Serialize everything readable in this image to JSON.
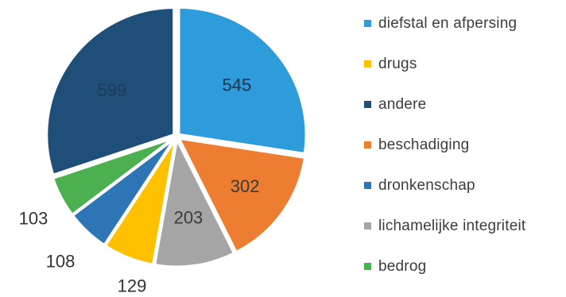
{
  "chart_data": {
    "type": "pie",
    "title": "",
    "series": [
      {
        "name": "diefstal en afpersing",
        "value": 545,
        "color": "#2E9BDB"
      },
      {
        "name": "beschadiging",
        "value": 302,
        "color": "#ED7D31"
      },
      {
        "name": "lichamelijke integriteit",
        "value": 203,
        "color": "#A5A5A5"
      },
      {
        "name": "drugs",
        "value": 129,
        "color": "#FFC000"
      },
      {
        "name": "dronkenschap",
        "value": 108,
        "color": "#2E75B6"
      },
      {
        "name": "bedrog",
        "value": 103,
        "color": "#4CAF50"
      },
      {
        "name": "andere",
        "value": 599,
        "color": "#1F4E79"
      }
    ],
    "legend_order": [
      "diefstal en afpersing",
      "drugs",
      "andere",
      "beschadiging",
      "dronkenschap",
      "lichamelijke integriteit",
      "bedrog"
    ],
    "legend_position": "right",
    "start_angle": "top, clockwise"
  }
}
